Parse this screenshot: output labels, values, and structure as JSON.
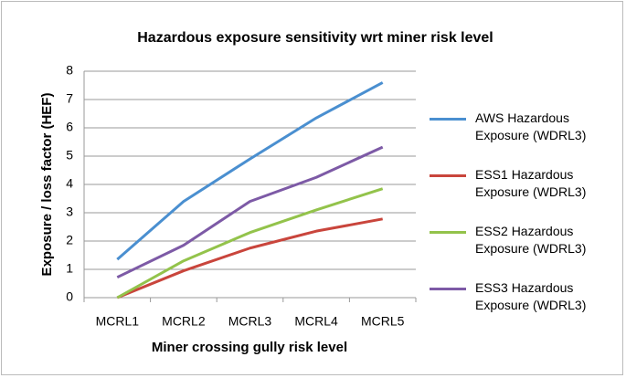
{
  "chart_data": {
    "type": "line",
    "title": "Hazardous exposure sensitivity wrt miner risk level",
    "x_label": "Miner crossing gully risk level",
    "y_label": "Exposure / loss factor (HEF)",
    "categories": [
      "MCRL1",
      "MCRL2",
      "MCRL3",
      "MCRL4",
      "MCRL5"
    ],
    "series": [
      {
        "name": "AWS Hazardous Exposure (WDRL3)",
        "color": "#4a8fd0",
        "values": [
          1.35,
          3.4,
          4.9,
          6.35,
          7.6
        ]
      },
      {
        "name": "ESS1 Hazardous Exposure (WDRL3)",
        "color": "#c9453c",
        "values": [
          0,
          0.95,
          1.75,
          2.35,
          2.78
        ]
      },
      {
        "name": "ESS2 Hazardous Exposure (WDRL3)",
        "color": "#93c34b",
        "values": [
          0,
          1.3,
          2.3,
          3.1,
          3.85
        ]
      },
      {
        "name": "ESS3 Hazardous Exposure (WDRL3)",
        "color": "#7d5aa6",
        "values": [
          0.72,
          1.85,
          3.4,
          4.25,
          5.32
        ]
      }
    ],
    "ylim": [
      0,
      8
    ],
    "yticks": [
      0,
      1,
      2,
      3,
      4,
      5,
      6,
      7,
      8
    ],
    "grid": true,
    "legend": "right"
  }
}
